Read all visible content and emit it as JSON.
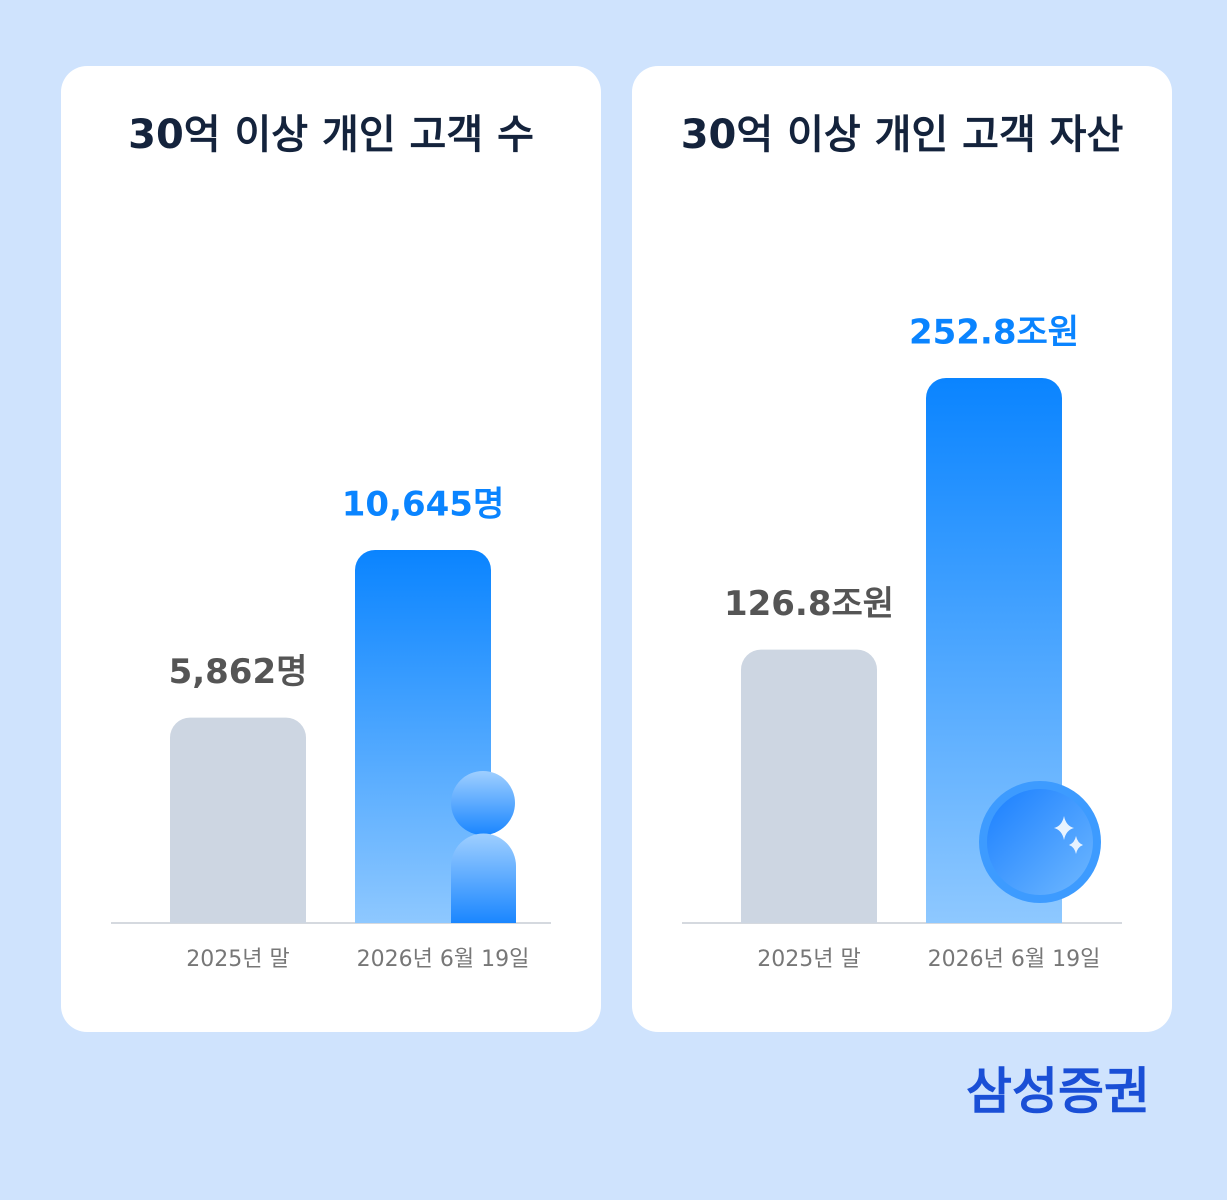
{
  "chart_data": [
    {
      "type": "bar",
      "title": "30억 이상 개인 고객 수",
      "categories": [
        "2025년 말",
        "2026년 6월 19일"
      ],
      "values": [
        5862,
        10645
      ],
      "value_labels": [
        "5,862명",
        "10,645명"
      ],
      "colors": [
        "#cdd6e2",
        "#0a84ff"
      ]
    },
    {
      "type": "bar",
      "title": "30억 이상 개인 고객 자산",
      "categories": [
        "2025년 말",
        "2026년 6월 19일"
      ],
      "values": [
        126.8,
        252.8
      ],
      "value_labels": [
        "126.8조원",
        "252.8조원"
      ],
      "colors": [
        "#cdd6e2",
        "#0a84ff"
      ]
    }
  ],
  "brand": "삼성증권"
}
